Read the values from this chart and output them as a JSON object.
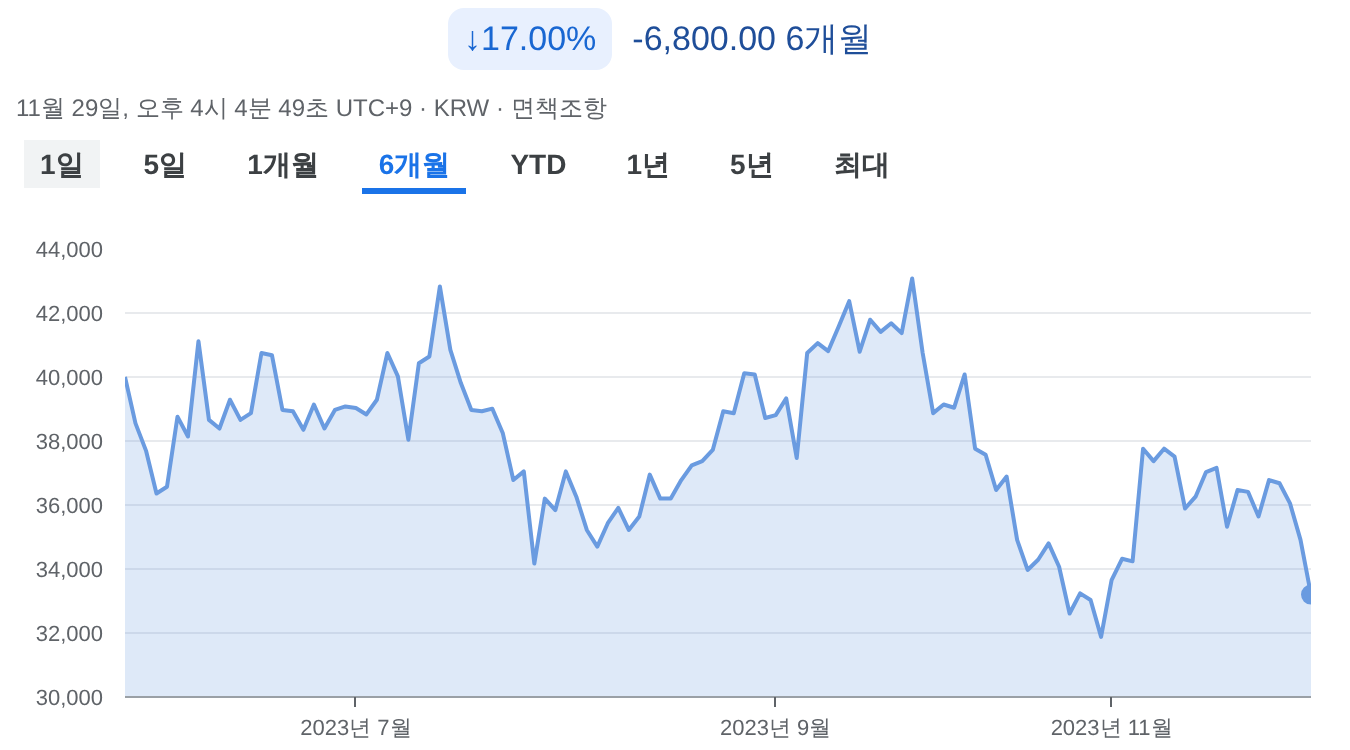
{
  "chart_data": {
    "type": "area",
    "title": "↓17.00%",
    "subtitle": "-6,800.00 6개월",
    "annotations": [
      "11월 29일, 오후 4시 4분 49초 UTC+9 · KRW · 면책조항",
      "1일",
      "5일",
      "1개월",
      "6개월",
      "YTD",
      "1년",
      "5년",
      "최대"
    ],
    "categories": [
      null,
      null,
      null,
      null,
      null,
      null,
      null,
      null,
      null,
      null,
      null,
      null,
      null,
      null,
      null,
      null,
      null,
      null,
      null,
      null,
      null,
      null,
      "2023년 7월",
      null,
      null,
      null,
      null,
      null,
      null,
      null,
      null,
      null,
      null,
      null,
      null,
      null,
      null,
      null,
      null,
      null,
      null,
      null,
      null,
      null,
      null,
      null,
      null,
      null,
      null,
      null,
      null,
      null,
      null,
      null,
      null,
      null,
      null,
      null,
      null,
      null,
      null,
      null,
      "2023년 9월",
      null,
      null,
      null,
      null,
      null,
      null,
      null,
      null,
      null,
      null,
      null,
      null,
      null,
      null,
      null,
      null,
      null,
      null,
      null,
      null,
      null,
      null,
      null,
      null,
      null,
      null,
      null,
      null,
      null,
      null,
      null,
      "2023년 11월",
      null,
      null,
      null,
      null,
      null,
      null,
      null,
      null,
      null,
      null,
      null,
      null,
      null,
      null,
      null,
      null,
      null,
      null,
      null
    ],
    "series": [
      {
        "color": "#6a9be0",
        "values": [
          40000,
          38550,
          37700,
          36360,
          36570,
          38760,
          38140,
          41120,
          38660,
          38390,
          39290,
          38660,
          38870,
          40750,
          40680,
          38970,
          38930,
          38350,
          39140,
          38390,
          38970,
          39080,
          39030,
          38830,
          39290,
          40750,
          40020,
          38040,
          40430,
          40640,
          42830,
          40850,
          39810,
          38970,
          38930,
          39010,
          38240,
          36780,
          37050,
          34170,
          36200,
          35840,
          37050,
          36260,
          35220,
          34700,
          35430,
          35910,
          35220,
          35640,
          36950,
          36200,
          36200,
          36780,
          37240,
          37370,
          37720,
          38930,
          38870,
          40120,
          40080,
          38720,
          38810,
          39330,
          37470,
          40750,
          41060,
          40810,
          41580,
          42370,
          40790,
          41790,
          41410,
          41680,
          41370,
          43080,
          40750,
          38870,
          39140,
          39040,
          40080,
          37760,
          37570,
          36470,
          36890,
          34910,
          33970,
          34290,
          34800,
          34070,
          32610,
          33240,
          33030,
          31880,
          33650,
          34320,
          34240,
          37760,
          37370,
          37760,
          37510,
          35890,
          36260,
          37030,
          37160,
          35320,
          36470,
          36410,
          35640,
          36780,
          36680,
          36050,
          34910,
          33200
        ]
      }
    ],
    "ylim": [
      30000,
      44000
    ],
    "yticks": [
      {
        "value": 30000,
        "label": "30,000"
      },
      {
        "value": 32000,
        "label": "32,000"
      },
      {
        "value": 34000,
        "label": "34,000"
      },
      {
        "value": 36000,
        "label": "36,000"
      },
      {
        "value": 38000,
        "label": "38,000"
      },
      {
        "value": 40000,
        "label": "40,000"
      },
      {
        "value": 42000,
        "label": "42,000"
      },
      {
        "value": 44000,
        "label": "44,000"
      }
    ],
    "grid": "y"
  }
}
